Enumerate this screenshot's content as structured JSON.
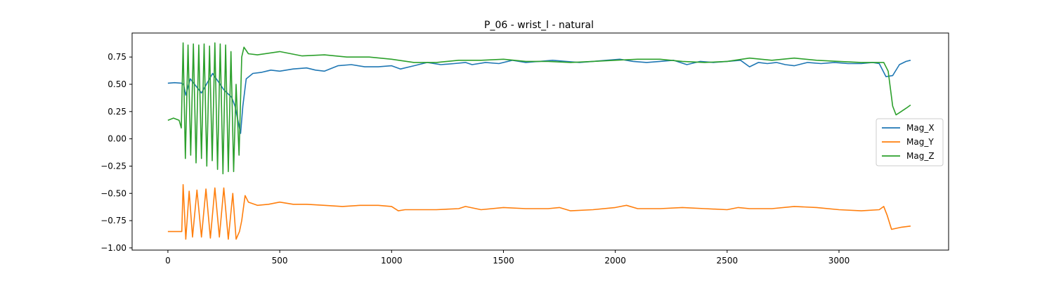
{
  "chart_data": {
    "type": "line",
    "title": "P_06 - wrist_l - natural",
    "xlabel": "",
    "ylabel": "",
    "xlim": [
      -160,
      3490
    ],
    "ylim": [
      -1.02,
      0.97
    ],
    "xticks": [
      0,
      500,
      1000,
      1500,
      2000,
      2500,
      3000
    ],
    "yticks": [
      -1.0,
      -0.75,
      -0.5,
      -0.25,
      0.0,
      0.25,
      0.5,
      0.75
    ],
    "ytick_labels": [
      "−1.00",
      "−0.75",
      "−0.50",
      "−0.25",
      "0.00",
      "0.25",
      "0.50",
      "0.75"
    ],
    "grid": false,
    "legend_position": "center-right",
    "series": [
      {
        "name": "Mag_X",
        "color": "#1f77b4",
        "x": [
          0,
          30,
          60,
          70,
          80,
          100,
          150,
          200,
          250,
          285,
          300,
          315,
          325,
          335,
          350,
          380,
          420,
          460,
          500,
          560,
          620,
          660,
          700,
          760,
          820,
          880,
          940,
          1000,
          1040,
          1100,
          1160,
          1220,
          1280,
          1330,
          1360,
          1420,
          1480,
          1540,
          1600,
          1660,
          1720,
          1780,
          1840,
          1900,
          1960,
          2020,
          2080,
          2140,
          2200,
          2260,
          2320,
          2380,
          2440,
          2500,
          2560,
          2600,
          2640,
          2680,
          2720,
          2760,
          2800,
          2860,
          2920,
          2980,
          3040,
          3100,
          3150,
          3180,
          3210,
          3240,
          3270,
          3300,
          3320
        ],
        "y": [
          0.51,
          0.515,
          0.51,
          0.5,
          0.4,
          0.55,
          0.42,
          0.6,
          0.45,
          0.38,
          0.3,
          0.15,
          0.05,
          0.3,
          0.55,
          0.6,
          0.61,
          0.63,
          0.62,
          0.64,
          0.65,
          0.63,
          0.62,
          0.67,
          0.68,
          0.66,
          0.66,
          0.67,
          0.64,
          0.67,
          0.7,
          0.68,
          0.69,
          0.7,
          0.68,
          0.7,
          0.69,
          0.72,
          0.7,
          0.71,
          0.72,
          0.71,
          0.7,
          0.71,
          0.72,
          0.73,
          0.71,
          0.7,
          0.71,
          0.72,
          0.68,
          0.71,
          0.7,
          0.71,
          0.72,
          0.66,
          0.7,
          0.69,
          0.7,
          0.68,
          0.67,
          0.7,
          0.69,
          0.7,
          0.69,
          0.69,
          0.7,
          0.69,
          0.57,
          0.58,
          0.68,
          0.71,
          0.72
        ]
      },
      {
        "name": "Mag_Y",
        "color": "#ff7f0e",
        "x": [
          0,
          40,
          62,
          68,
          80,
          95,
          110,
          130,
          150,
          170,
          190,
          210,
          230,
          250,
          270,
          290,
          305,
          320,
          330,
          345,
          360,
          400,
          450,
          500,
          560,
          620,
          700,
          780,
          860,
          940,
          1000,
          1030,
          1060,
          1100,
          1200,
          1300,
          1330,
          1400,
          1500,
          1600,
          1700,
          1750,
          1800,
          1900,
          2000,
          2050,
          2100,
          2200,
          2300,
          2400,
          2500,
          2550,
          2600,
          2700,
          2800,
          2900,
          3000,
          3100,
          3180,
          3200,
          3215,
          3235,
          3280,
          3320
        ],
        "y": [
          -0.85,
          -0.85,
          -0.85,
          -0.42,
          -0.92,
          -0.48,
          -0.9,
          -0.47,
          -0.9,
          -0.46,
          -0.91,
          -0.45,
          -0.9,
          -0.45,
          -0.92,
          -0.5,
          -0.92,
          -0.85,
          -0.75,
          -0.52,
          -0.58,
          -0.61,
          -0.6,
          -0.58,
          -0.6,
          -0.6,
          -0.61,
          -0.62,
          -0.61,
          -0.61,
          -0.62,
          -0.66,
          -0.65,
          -0.65,
          -0.65,
          -0.64,
          -0.62,
          -0.65,
          -0.63,
          -0.64,
          -0.64,
          -0.63,
          -0.66,
          -0.65,
          -0.63,
          -0.61,
          -0.64,
          -0.64,
          -0.63,
          -0.64,
          -0.65,
          -0.63,
          -0.64,
          -0.64,
          -0.62,
          -0.63,
          -0.65,
          -0.66,
          -0.65,
          -0.62,
          -0.7,
          -0.83,
          -0.81,
          -0.8
        ]
      },
      {
        "name": "Mag_Z",
        "color": "#2ca02c",
        "x": [
          0,
          25,
          50,
          60,
          68,
          78,
          90,
          102,
          114,
          126,
          138,
          150,
          162,
          174,
          186,
          198,
          210,
          222,
          234,
          246,
          258,
          270,
          282,
          294,
          305,
          318,
          330,
          340,
          360,
          400,
          500,
          600,
          700,
          800,
          900,
          1000,
          1100,
          1200,
          1300,
          1400,
          1500,
          1600,
          1700,
          1800,
          1900,
          2000,
          2100,
          2200,
          2300,
          2400,
          2500,
          2600,
          2700,
          2800,
          2900,
          3000,
          3100,
          3200,
          3220,
          3240,
          3255,
          3270,
          3300,
          3320
        ],
        "y": [
          0.17,
          0.19,
          0.17,
          0.1,
          0.88,
          -0.18,
          0.86,
          -0.15,
          0.87,
          -0.22,
          0.86,
          -0.18,
          0.87,
          -0.25,
          0.85,
          -0.2,
          0.88,
          -0.28,
          0.87,
          -0.32,
          0.86,
          -0.3,
          0.8,
          -0.3,
          0.5,
          -0.15,
          0.75,
          0.84,
          0.78,
          0.77,
          0.8,
          0.76,
          0.77,
          0.75,
          0.75,
          0.73,
          0.7,
          0.7,
          0.72,
          0.72,
          0.73,
          0.71,
          0.71,
          0.7,
          0.71,
          0.72,
          0.73,
          0.73,
          0.71,
          0.7,
          0.71,
          0.74,
          0.72,
          0.74,
          0.72,
          0.71,
          0.7,
          0.7,
          0.62,
          0.3,
          0.22,
          0.24,
          0.28,
          0.31
        ]
      }
    ]
  }
}
